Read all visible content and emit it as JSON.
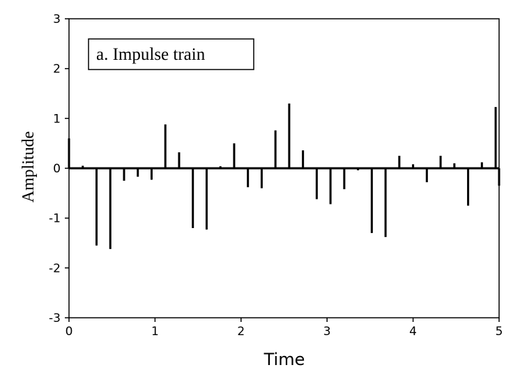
{
  "chart_data": {
    "type": "bar",
    "subtype": "impulse-stem",
    "annotation": "a.  Impulse train",
    "xlabel": "Time",
    "ylabel": "Amplitude",
    "xlim": [
      0,
      5
    ],
    "ylim": [
      -3,
      3
    ],
    "xticks": [
      0,
      1,
      2,
      3,
      4,
      5
    ],
    "yticks": [
      -3,
      -2,
      -1,
      0,
      1,
      2,
      3
    ],
    "grid": false,
    "x": [
      0.0,
      0.16,
      0.32,
      0.48,
      0.64,
      0.8,
      0.96,
      1.12,
      1.28,
      1.44,
      1.6,
      1.76,
      1.92,
      2.08,
      2.24,
      2.4,
      2.56,
      2.72,
      2.88,
      3.04,
      3.2,
      3.36,
      3.52,
      3.68,
      3.84,
      4.0,
      4.16,
      4.32,
      4.48,
      4.64,
      4.8,
      4.96,
      5.0
    ],
    "values": [
      0.6,
      0.05,
      -1.55,
      -1.62,
      -0.25,
      -0.17,
      -0.23,
      0.88,
      0.32,
      -1.2,
      -1.23,
      0.04,
      0.5,
      -0.38,
      -0.4,
      0.76,
      1.3,
      0.36,
      -0.62,
      -0.72,
      -0.42,
      -0.04,
      -1.3,
      -1.38,
      0.25,
      0.08,
      -0.28,
      0.25,
      0.1,
      -0.75,
      0.12,
      1.23,
      -0.35
    ]
  }
}
